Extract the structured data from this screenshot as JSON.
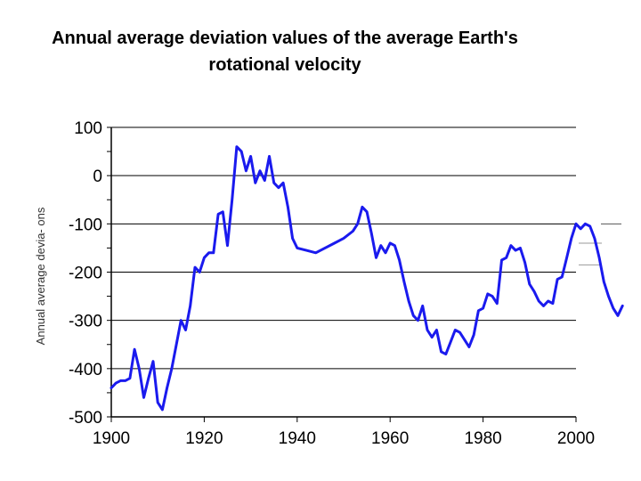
{
  "chart_data": {
    "type": "line",
    "title_lines": [
      "Annual average deviation values of the average Earth's",
      "rotational velocity"
    ],
    "xlabel": "",
    "ylabel": "Annual average devia- ons",
    "xlim": [
      1900,
      2010
    ],
    "ylim": [
      -500,
      100
    ],
    "x_ticks": [
      1900,
      1920,
      1940,
      1960,
      1980,
      2000
    ],
    "x_tick_labels": [
      "1900",
      "1920",
      "1940",
      "1960",
      "1980",
      "2000"
    ],
    "y_ticks": [
      100,
      0,
      -100,
      -200,
      -300,
      -400,
      -500
    ],
    "y_tick_labels": [
      "100",
      "0",
      "-100",
      "-200",
      "-300",
      "-400",
      "-500"
    ],
    "grid": "horizontal",
    "colors": {
      "line": "#1a1aee",
      "grid": "#000000"
    },
    "series": [
      {
        "name": "",
        "points": [
          [
            1900,
            -440
          ],
          [
            1901,
            -430
          ],
          [
            1902,
            -425
          ],
          [
            1903,
            -425
          ],
          [
            1904,
            -420
          ],
          [
            1905,
            -360
          ],
          [
            1906,
            -400
          ],
          [
            1907,
            -460
          ],
          [
            1908,
            -420
          ],
          [
            1909,
            -385
          ],
          [
            1910,
            -470
          ],
          [
            1911,
            -485
          ],
          [
            1912,
            -440
          ],
          [
            1913,
            -400
          ],
          [
            1914,
            -350
          ],
          [
            1915,
            -300
          ],
          [
            1916,
            -320
          ],
          [
            1917,
            -270
          ],
          [
            1918,
            -190
          ],
          [
            1919,
            -200
          ],
          [
            1920,
            -170
          ],
          [
            1921,
            -160
          ],
          [
            1922,
            -160
          ],
          [
            1923,
            -80
          ],
          [
            1924,
            -75
          ],
          [
            1925,
            -145
          ],
          [
            1926,
            -50
          ],
          [
            1927,
            60
          ],
          [
            1928,
            50
          ],
          [
            1929,
            10
          ],
          [
            1930,
            40
          ],
          [
            1931,
            -15
          ],
          [
            1932,
            10
          ],
          [
            1933,
            -10
          ],
          [
            1934,
            40
          ],
          [
            1935,
            -15
          ],
          [
            1936,
            -25
          ],
          [
            1937,
            -15
          ],
          [
            1938,
            -65
          ],
          [
            1939,
            -130
          ],
          [
            1940,
            -150
          ],
          [
            1942,
            -155
          ],
          [
            1944,
            -160
          ],
          [
            1946,
            -150
          ],
          [
            1948,
            -140
          ],
          [
            1950,
            -130
          ],
          [
            1952,
            -115
          ],
          [
            1953,
            -100
          ],
          [
            1954,
            -65
          ],
          [
            1955,
            -75
          ],
          [
            1956,
            -120
          ],
          [
            1957,
            -170
          ],
          [
            1958,
            -145
          ],
          [
            1959,
            -160
          ],
          [
            1960,
            -140
          ],
          [
            1961,
            -145
          ],
          [
            1962,
            -175
          ],
          [
            1963,
            -220
          ],
          [
            1964,
            -260
          ],
          [
            1965,
            -290
          ],
          [
            1966,
            -300
          ],
          [
            1967,
            -270
          ],
          [
            1968,
            -320
          ],
          [
            1969,
            -335
          ],
          [
            1970,
            -320
          ],
          [
            1971,
            -365
          ],
          [
            1972,
            -370
          ],
          [
            1973,
            -345
          ],
          [
            1974,
            -320
          ],
          [
            1975,
            -325
          ],
          [
            1976,
            -340
          ],
          [
            1977,
            -355
          ],
          [
            1978,
            -330
          ],
          [
            1979,
            -280
          ],
          [
            1980,
            -275
          ],
          [
            1981,
            -245
          ],
          [
            1982,
            -250
          ],
          [
            1983,
            -265
          ],
          [
            1984,
            -175
          ],
          [
            1985,
            -170
          ],
          [
            1986,
            -145
          ],
          [
            1987,
            -155
          ],
          [
            1988,
            -150
          ],
          [
            1989,
            -180
          ],
          [
            1990,
            -225
          ],
          [
            1991,
            -240
          ],
          [
            1992,
            -260
          ],
          [
            1993,
            -270
          ],
          [
            1994,
            -260
          ],
          [
            1995,
            -265
          ],
          [
            1996,
            -215
          ],
          [
            1997,
            -210
          ],
          [
            1998,
            -170
          ],
          [
            1999,
            -130
          ],
          [
            2000,
            -100
          ],
          [
            2001,
            -110
          ],
          [
            2002,
            -100
          ],
          [
            2003,
            -105
          ],
          [
            2004,
            -130
          ],
          [
            2005,
            -170
          ],
          [
            2006,
            -220
          ],
          [
            2007,
            -250
          ],
          [
            2008,
            -275
          ],
          [
            2009,
            -290
          ],
          [
            2010,
            -270
          ]
        ]
      }
    ]
  }
}
